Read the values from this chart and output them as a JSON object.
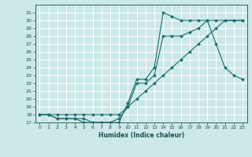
{
  "xlabel": "Humidex (Indice chaleur)",
  "bg_color": "#cce8e8",
  "grid_color": "#ffffff",
  "line_color": "#1a6e6e",
  "xlim": [
    -0.5,
    23.5
  ],
  "ylim": [
    17,
    32
  ],
  "yticks": [
    17,
    18,
    19,
    20,
    21,
    22,
    23,
    24,
    25,
    26,
    27,
    28,
    29,
    30,
    31
  ],
  "xticks": [
    0,
    1,
    2,
    3,
    4,
    5,
    6,
    7,
    8,
    9,
    10,
    11,
    12,
    13,
    14,
    15,
    16,
    17,
    18,
    19,
    20,
    21,
    22,
    23
  ],
  "line1_x": [
    0,
    1,
    2,
    3,
    4,
    5,
    6,
    7,
    8,
    9,
    10,
    11,
    12,
    13,
    14,
    15,
    16,
    17,
    18,
    19,
    20,
    21,
    22,
    23
  ],
  "line1_y": [
    18,
    18,
    18,
    18,
    18,
    18,
    18,
    18,
    18,
    18,
    19,
    20,
    21,
    22,
    23,
    24,
    25,
    26,
    27,
    28,
    29,
    30,
    30,
    30
  ],
  "line2_x": [
    0,
    1,
    2,
    3,
    4,
    5,
    6,
    7,
    8,
    9,
    10,
    11,
    12,
    13,
    14,
    15,
    16,
    17,
    18,
    19,
    20,
    21,
    22,
    23
  ],
  "line2_y": [
    18,
    18,
    17.5,
    17.5,
    17.5,
    17.5,
    17,
    17,
    17,
    17.5,
    19,
    22,
    22,
    23,
    28,
    28,
    28,
    28.5,
    29,
    30,
    27,
    24,
    23,
    22.5
  ],
  "line3_x": [
    0,
    1,
    2,
    3,
    4,
    5,
    6,
    7,
    8,
    9,
    10,
    11,
    12,
    13,
    14,
    15,
    16,
    17,
    18,
    19,
    20,
    21,
    22,
    23
  ],
  "line3_y": [
    18,
    18,
    17.5,
    17.5,
    17.5,
    17,
    17,
    17,
    17,
    17,
    19.5,
    22.5,
    22.5,
    24,
    31,
    30.5,
    30,
    30,
    30,
    30,
    30,
    30,
    30,
    30
  ]
}
